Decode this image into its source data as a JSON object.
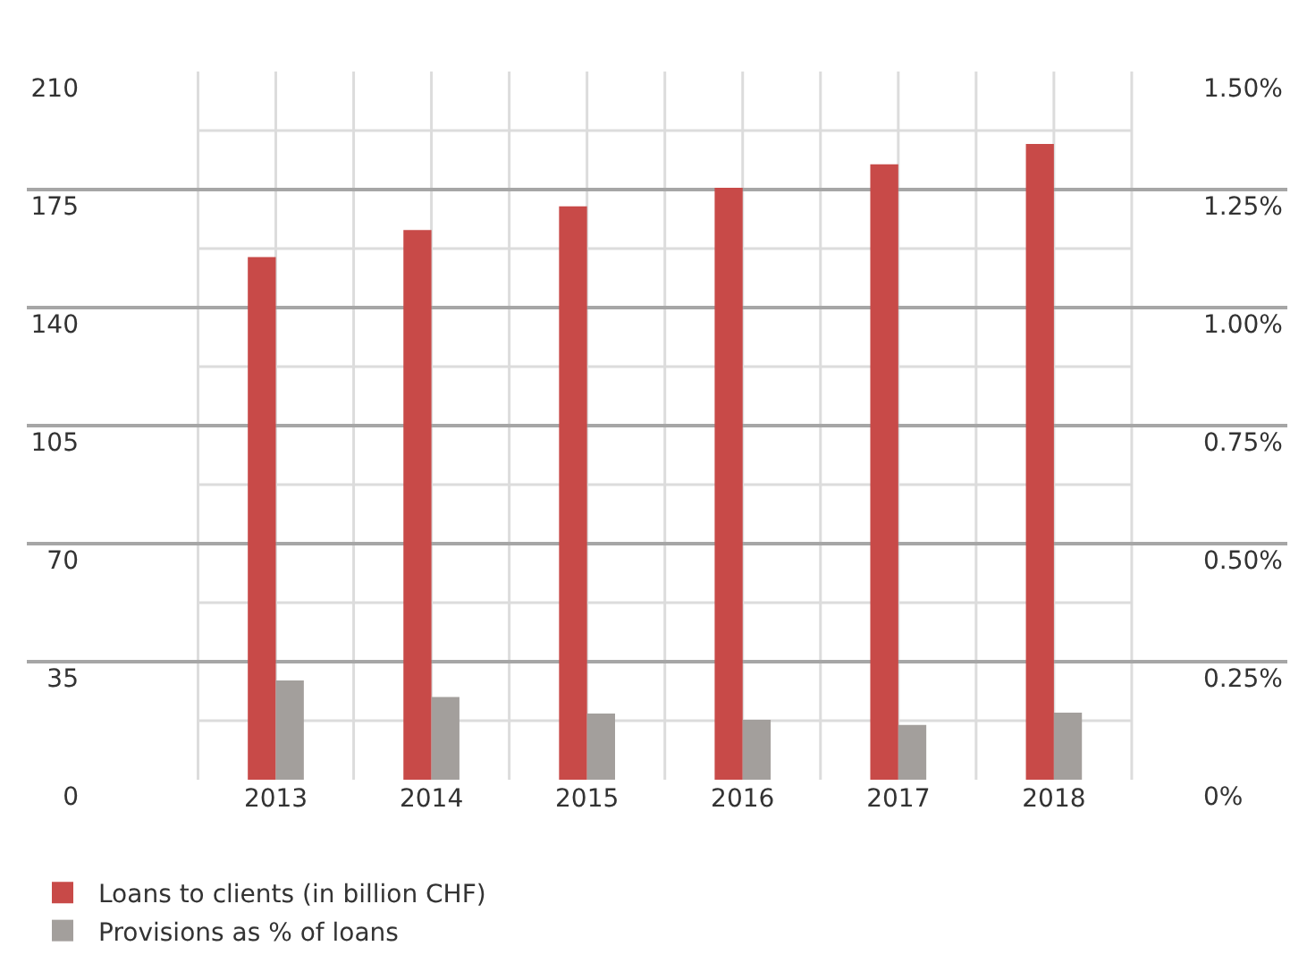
{
  "chart_data": {
    "type": "bar",
    "categories": [
      "2013",
      "2014",
      "2015",
      "2016",
      "2017",
      "2018"
    ],
    "series": [
      {
        "name": "Loans to clients (in billion CHF)",
        "color": "#c84a48",
        "values": [
          155,
          163,
          170,
          175.5,
          182.5,
          188.5
        ]
      },
      {
        "name": "Provisions as % of loans",
        "color": "#a39f9c",
        "axis": "y2",
        "values": [
          0.21,
          0.175,
          0.14,
          0.127,
          0.116,
          0.142
        ]
      }
    ],
    "ylim": [
      0,
      210
    ],
    "yticks": [
      0,
      35,
      70,
      105,
      140,
      175,
      210
    ],
    "y2lim": [
      0,
      1.5
    ],
    "y2ticks": [
      {
        "value": 0,
        "label": "0%"
      },
      {
        "value": 0.25,
        "label": "0.25%"
      },
      {
        "value": 0.5,
        "label": "0.50%"
      },
      {
        "value": 0.75,
        "label": "0.75%"
      },
      {
        "value": 1.0,
        "label": "1.00%"
      },
      {
        "value": 1.25,
        "label": "1.25%"
      },
      {
        "value": 1.5,
        "label": "1.50%"
      }
    ],
    "grid": true,
    "legend": "bottom left"
  }
}
